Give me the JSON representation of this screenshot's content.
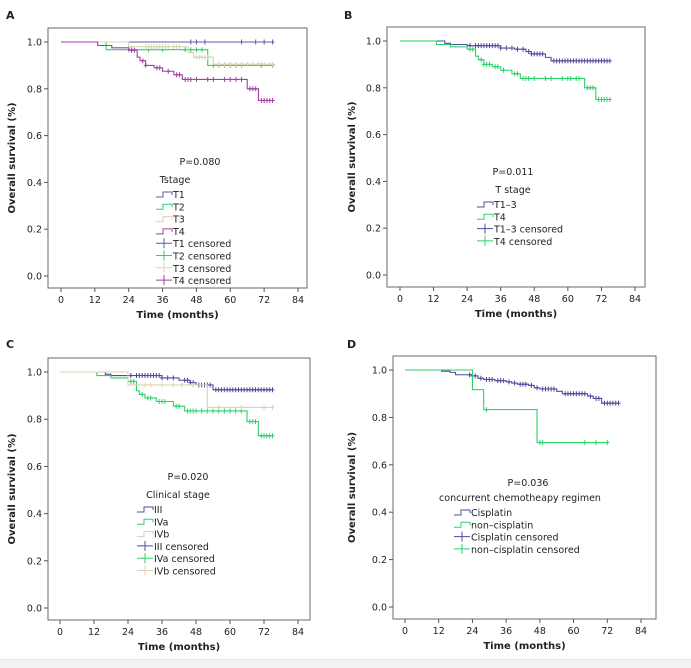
{
  "figure": {
    "panels_count": 4
  },
  "chart_data": [
    {
      "type": "line",
      "subtype": "kaplan-meier",
      "panel_label": "A",
      "title": "",
      "xlabel": "Time (months)",
      "ylabel": "Overall survival (%)",
      "xlim": [
        0,
        84
      ],
      "ylim": [
        0.0,
        1.0
      ],
      "xticks": [
        "0",
        "12",
        "24",
        "36",
        "48",
        "60",
        "72",
        "84"
      ],
      "yticks": [
        "0.0",
        "0.2",
        "0.4",
        "0.6",
        "0.8",
        "1.0"
      ],
      "grid": false,
      "annotation": "P=0.080",
      "legend_title": "Tstage",
      "legend_placement": "center",
      "legend": [
        "T1",
        "T2",
        "T3",
        "T4",
        "T1 censored",
        "T2 censored",
        "T3 censored",
        "T4 censored"
      ],
      "series": [
        {
          "name": "T1",
          "color": "#5b5ca6",
          "steps": [
            [
              0,
              1.0
            ]
          ],
          "end": 75,
          "censored": [
            46,
            48,
            51,
            64,
            69,
            72,
            75
          ]
        },
        {
          "name": "T2",
          "color": "#2bd26b",
          "steps": [
            [
              0,
              1.0
            ],
            [
              16,
              0.967
            ],
            [
              52,
              0.9
            ]
          ],
          "end": 75,
          "censored": [
            24,
            25,
            31,
            36,
            44,
            46,
            48,
            50,
            54,
            56,
            58,
            60,
            62,
            64,
            71,
            75
          ]
        },
        {
          "name": "T3",
          "color": "#d8d6ae",
          "steps": [
            [
              0,
              1.0
            ],
            [
              24,
              0.98
            ],
            [
              45,
              0.955
            ],
            [
              47,
              0.935
            ],
            [
              54,
              0.905
            ]
          ],
          "end": 75,
          "censored": [
            30,
            31,
            32,
            33,
            34,
            35,
            36,
            37,
            38,
            40,
            41,
            42,
            48,
            49,
            50,
            51,
            52,
            56,
            58,
            60,
            62,
            64,
            66,
            68,
            70,
            72,
            74,
            75
          ]
        },
        {
          "name": "T4",
          "color": "#a23ea8",
          "steps": [
            [
              0,
              1.0
            ],
            [
              13,
              0.985
            ],
            [
              18,
              0.975
            ],
            [
              24,
              0.965
            ],
            [
              27,
              0.935
            ],
            [
              28,
              0.92
            ],
            [
              30,
              0.9
            ],
            [
              33,
              0.89
            ],
            [
              36,
              0.875
            ],
            [
              40,
              0.86
            ],
            [
              43,
              0.84
            ],
            [
              66,
              0.8
            ],
            [
              70,
              0.75
            ]
          ],
          "end": 75,
          "censored": [
            25,
            26,
            29,
            30,
            34,
            35,
            38,
            41,
            42,
            44,
            45,
            46,
            48,
            52,
            54,
            58,
            60,
            62,
            64,
            67,
            68,
            69,
            71,
            72,
            73,
            74,
            75
          ]
        }
      ]
    },
    {
      "type": "line",
      "subtype": "kaplan-meier",
      "panel_label": "B",
      "title": "",
      "xlabel": "Time (months)",
      "ylabel": "Overall survival (%)",
      "xlim": [
        0,
        84
      ],
      "ylim": [
        0.0,
        1.0
      ],
      "xticks": [
        "0",
        "12",
        "24",
        "36",
        "48",
        "60",
        "72",
        "84"
      ],
      "yticks": [
        "0.0",
        "0.2",
        "0.4",
        "0.6",
        "0.8",
        "1.0"
      ],
      "grid": false,
      "annotation": "P=0.011",
      "legend_title": "T stage",
      "legend_placement": "center",
      "legend": [
        "T1–3",
        "T4",
        "T1–3 censored",
        "T4 censored"
      ],
      "series": [
        {
          "name": "T1–3",
          "color": "#4f4c9e",
          "steps": [
            [
              0,
              1.0
            ],
            [
              16,
              0.99
            ],
            [
              18,
              0.985
            ],
            [
              24,
              0.98
            ],
            [
              36,
              0.97
            ],
            [
              41,
              0.965
            ],
            [
              45,
              0.955
            ],
            [
              47,
              0.945
            ],
            [
              52,
              0.93
            ],
            [
              54,
              0.915
            ]
          ],
          "end": 75,
          "censored": [
            25,
            27,
            28,
            29,
            30,
            31,
            32,
            33,
            34,
            35,
            36,
            38,
            40,
            42,
            44,
            46,
            47,
            48,
            49,
            50,
            51,
            55,
            56,
            57,
            58,
            59,
            60,
            61,
            62,
            63,
            64,
            65,
            66,
            67,
            68,
            69,
            70,
            71,
            72,
            73,
            74,
            75
          ]
        },
        {
          "name": "T4",
          "color": "#2bd26b",
          "steps": [
            [
              0,
              1.0
            ],
            [
              13,
              0.985
            ],
            [
              18,
              0.975
            ],
            [
              24,
              0.965
            ],
            [
              27,
              0.935
            ],
            [
              28,
              0.92
            ],
            [
              30,
              0.9
            ],
            [
              33,
              0.89
            ],
            [
              36,
              0.875
            ],
            [
              40,
              0.86
            ],
            [
              43,
              0.84
            ],
            [
              66,
              0.8
            ],
            [
              70,
              0.75
            ]
          ],
          "end": 75,
          "censored": [
            25,
            26,
            29,
            30,
            31,
            32,
            34,
            35,
            37,
            41,
            42,
            44,
            45,
            46,
            48,
            52,
            54,
            58,
            60,
            61,
            63,
            64,
            67,
            68,
            69,
            71,
            72,
            73,
            74,
            75
          ]
        }
      ]
    },
    {
      "type": "line",
      "subtype": "kaplan-meier",
      "panel_label": "C",
      "title": "",
      "xlabel": "Time (months)",
      "ylabel": "Overall survival (%)",
      "xlim": [
        0,
        84
      ],
      "ylim": [
        0.0,
        1.0
      ],
      "xticks": [
        "0",
        "12",
        "24",
        "36",
        "48",
        "60",
        "72",
        "84"
      ],
      "yticks": [
        "0.0",
        "0.2",
        "0.4",
        "0.6",
        "0.8",
        "1.0"
      ],
      "grid": false,
      "annotation": "P=0.020",
      "legend_title": "Clinical stage",
      "legend_placement": "center",
      "legend": [
        "III",
        "IVa",
        "IVb",
        "III censored",
        "IVa censored",
        "IVb censored"
      ],
      "series": [
        {
          "name": "III",
          "color": "#4f4c9e",
          "steps": [
            [
              0,
              1.0
            ],
            [
              16,
              0.99
            ],
            [
              18,
              0.985
            ],
            [
              36,
              0.975
            ],
            [
              42,
              0.965
            ],
            [
              46,
              0.955
            ],
            [
              48,
              0.945
            ],
            [
              54,
              0.925
            ]
          ],
          "end": 75,
          "censored": [
            25,
            27,
            28,
            29,
            30,
            31,
            32,
            33,
            34,
            35,
            36,
            38,
            40,
            44,
            45,
            46,
            47,
            49,
            50,
            51,
            52,
            53,
            55,
            56,
            57,
            58,
            59,
            60,
            61,
            62,
            63,
            64,
            65,
            66,
            67,
            68,
            69,
            70,
            71,
            72,
            73,
            74,
            75
          ]
        },
        {
          "name": "IVa",
          "color": "#2bd26b",
          "steps": [
            [
              0,
              1.0
            ],
            [
              13,
              0.985
            ],
            [
              18,
              0.975
            ],
            [
              24,
              0.96
            ],
            [
              27,
              0.92
            ],
            [
              28,
              0.905
            ],
            [
              30,
              0.89
            ],
            [
              34,
              0.875
            ],
            [
              40,
              0.855
            ],
            [
              44,
              0.835
            ],
            [
              66,
              0.79
            ],
            [
              70,
              0.73
            ]
          ],
          "end": 75,
          "censored": [
            25,
            26,
            29,
            31,
            32,
            35,
            36,
            37,
            41,
            42,
            45,
            46,
            47,
            48,
            50,
            52,
            54,
            56,
            58,
            60,
            62,
            64,
            67,
            68,
            69,
            71,
            72,
            73,
            74,
            75
          ]
        },
        {
          "name": "IVb",
          "color": "#d8d6ae",
          "steps": [
            [
              0,
              1.0
            ],
            [
              24,
              0.945
            ],
            [
              52,
              0.85
            ]
          ],
          "end": 75,
          "censored": [
            30,
            32,
            36,
            40,
            43,
            47,
            56,
            64,
            72,
            75
          ]
        }
      ]
    },
    {
      "type": "line",
      "subtype": "kaplan-meier",
      "panel_label": "D",
      "title": "",
      "xlabel": "Time (months)",
      "ylabel": "Overall survival (%)",
      "xlim": [
        0,
        84
      ],
      "ylim": [
        0.0,
        1.0
      ],
      "xticks": [
        "0",
        "12",
        "24",
        "36",
        "48",
        "60",
        "72",
        "84"
      ],
      "yticks": [
        "0.0",
        "0.2",
        "0.4",
        "0.6",
        "0.8",
        "1.0"
      ],
      "grid": false,
      "annotation": "P=0.036",
      "legend_title": "concurrent chemotheapy regimen",
      "legend_placement": "center",
      "legend": [
        "Cisplatin",
        "non–cisplatin",
        "Cisplatin  censored",
        "non–cisplatin censored"
      ],
      "series": [
        {
          "name": "Cisplatin",
          "color": "#4f4c9e",
          "steps": [
            [
              0,
              1.0
            ],
            [
              13,
              0.995
            ],
            [
              16,
              0.99
            ],
            [
              18,
              0.98
            ],
            [
              24,
              0.975
            ],
            [
              26,
              0.965
            ],
            [
              28,
              0.96
            ],
            [
              32,
              0.955
            ],
            [
              36,
              0.95
            ],
            [
              38,
              0.945
            ],
            [
              40,
              0.94
            ],
            [
              44,
              0.935
            ],
            [
              46,
              0.925
            ],
            [
              48,
              0.92
            ],
            [
              54,
              0.91
            ],
            [
              56,
              0.9
            ],
            [
              65,
              0.89
            ],
            [
              67,
              0.88
            ],
            [
              70,
              0.86
            ]
          ],
          "end": 76,
          "censored": [
            23,
            24,
            25,
            27,
            29,
            30,
            31,
            33,
            34,
            35,
            37,
            39,
            41,
            42,
            43,
            45,
            47,
            49,
            50,
            51,
            52,
            53,
            57,
            58,
            59,
            60,
            61,
            62,
            63,
            64,
            66,
            68,
            69,
            71,
            72,
            73,
            74,
            75,
            76
          ]
        },
        {
          "name": "non–cisplatin",
          "color": "#2bd26b",
          "steps": [
            [
              0,
              1.0
            ],
            [
              24,
              0.917
            ],
            [
              28,
              0.833
            ],
            [
              47,
              0.694
            ]
          ],
          "end": 72,
          "censored": [
            29,
            48,
            49,
            64,
            68,
            72
          ]
        }
      ]
    }
  ]
}
